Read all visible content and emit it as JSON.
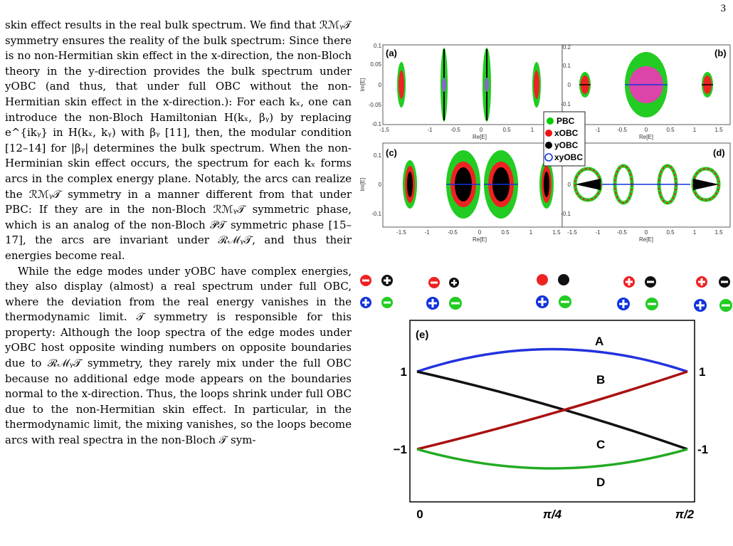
{
  "page_number": "3",
  "body_text": {
    "paragraph_1": "skin effect results in the real bulk spectrum. We find that ℛℳᵧ𝒯 symmetry ensures the reality of the bulk spectrum: Since there is no non-Hermitian skin effect in the x-direction, the non-Bloch theory in the y-direction provides the bulk spectrum under yOBC (and thus, that under full OBC without the non-Hermitian skin effect in the x-direction.): For each kₓ, one can introduce the non-Bloch Hamiltonian H(kₓ, βᵧ) by replacing e^{ikᵧ} in H(kₓ, kᵧ) with βᵧ [11], then, the modular condition [12–14] for |βᵧ| determines the bulk spectrum. When the non-Herminian skin effect occurs, the spectrum for each kₓ forms arcs in the complex energy plane. Notably, the arcs can realize the ℛℳᵧ𝒯 symmetry in a manner different from that under PBC: If they are in the non-Bloch ℛℳᵧ𝒯 symmetric phase, which is an analog of the non-Bloch 𝒫𝒯 symmetric phase [15–17], the arcs are invariant under ℛℳᵧ𝒯, and thus their energies become real.",
    "paragraph_2": "While the edge modes under yOBC have complex energies, they also display (almost) a real spectrum under full OBC, where the deviation from the real energy vanishes in the thermodynamic limit. 𝒯 symmetry is responsible for this property: Although the loop spectra of the edge modes under yOBC host opposite winding numbers on opposite boundaries due to ℛℳᵧ𝒯 symmetry, they rarely mix under the full OBC because no additional edge mode appears on the boundaries normal to the x-direction. Thus, the loops shrink under full OBC due to the non-Hermitian skin effect. In particular, in the thermodynamic limit, the mixing vanishes, so the loops become arcs with real spectra in the non-Bloch 𝒯 sym-"
  },
  "figure": {
    "panels": {
      "a": "(a)",
      "b": "(b)",
      "c": "(c)",
      "d": "(d)",
      "e": "(e)"
    },
    "axes": {
      "xlabel": "Re[E]",
      "ylabel": "Im[E]",
      "x_ticks": [
        "-1.5",
        "-1",
        "-0.5",
        "0",
        "0.5",
        "1",
        "1.5"
      ],
      "y_ticks_a": [
        "0.1",
        "0.05",
        "0",
        "-0.05",
        "-0.1"
      ],
      "y_ticks_b": [
        "0.2",
        "0.1",
        "0",
        "-0.1"
      ],
      "y_ticks_cd": [
        "0.1",
        "0",
        "-0.1"
      ]
    },
    "legend": {
      "entries": [
        {
          "label": "PBC",
          "color": "#00cc00",
          "marker": "filled"
        },
        {
          "label": "xOBC",
          "color": "#ee1111",
          "marker": "filled"
        },
        {
          "label": "yOBC",
          "color": "#000000",
          "marker": "filled"
        },
        {
          "label": "xyOBC",
          "color": "#1133dd",
          "marker": "open"
        }
      ]
    },
    "panel_e": {
      "band_labels": [
        "A",
        "B",
        "C",
        "D"
      ],
      "y_labels_left": [
        "1",
        "−1"
      ],
      "y_labels_right": [
        "1",
        "-1"
      ],
      "x_labels": [
        "0",
        "π/4",
        "π/2"
      ],
      "colors": {
        "A": "#2233dd",
        "B": "#aa1111",
        "C": "#111111",
        "D": "#22aa22"
      }
    }
  }
}
